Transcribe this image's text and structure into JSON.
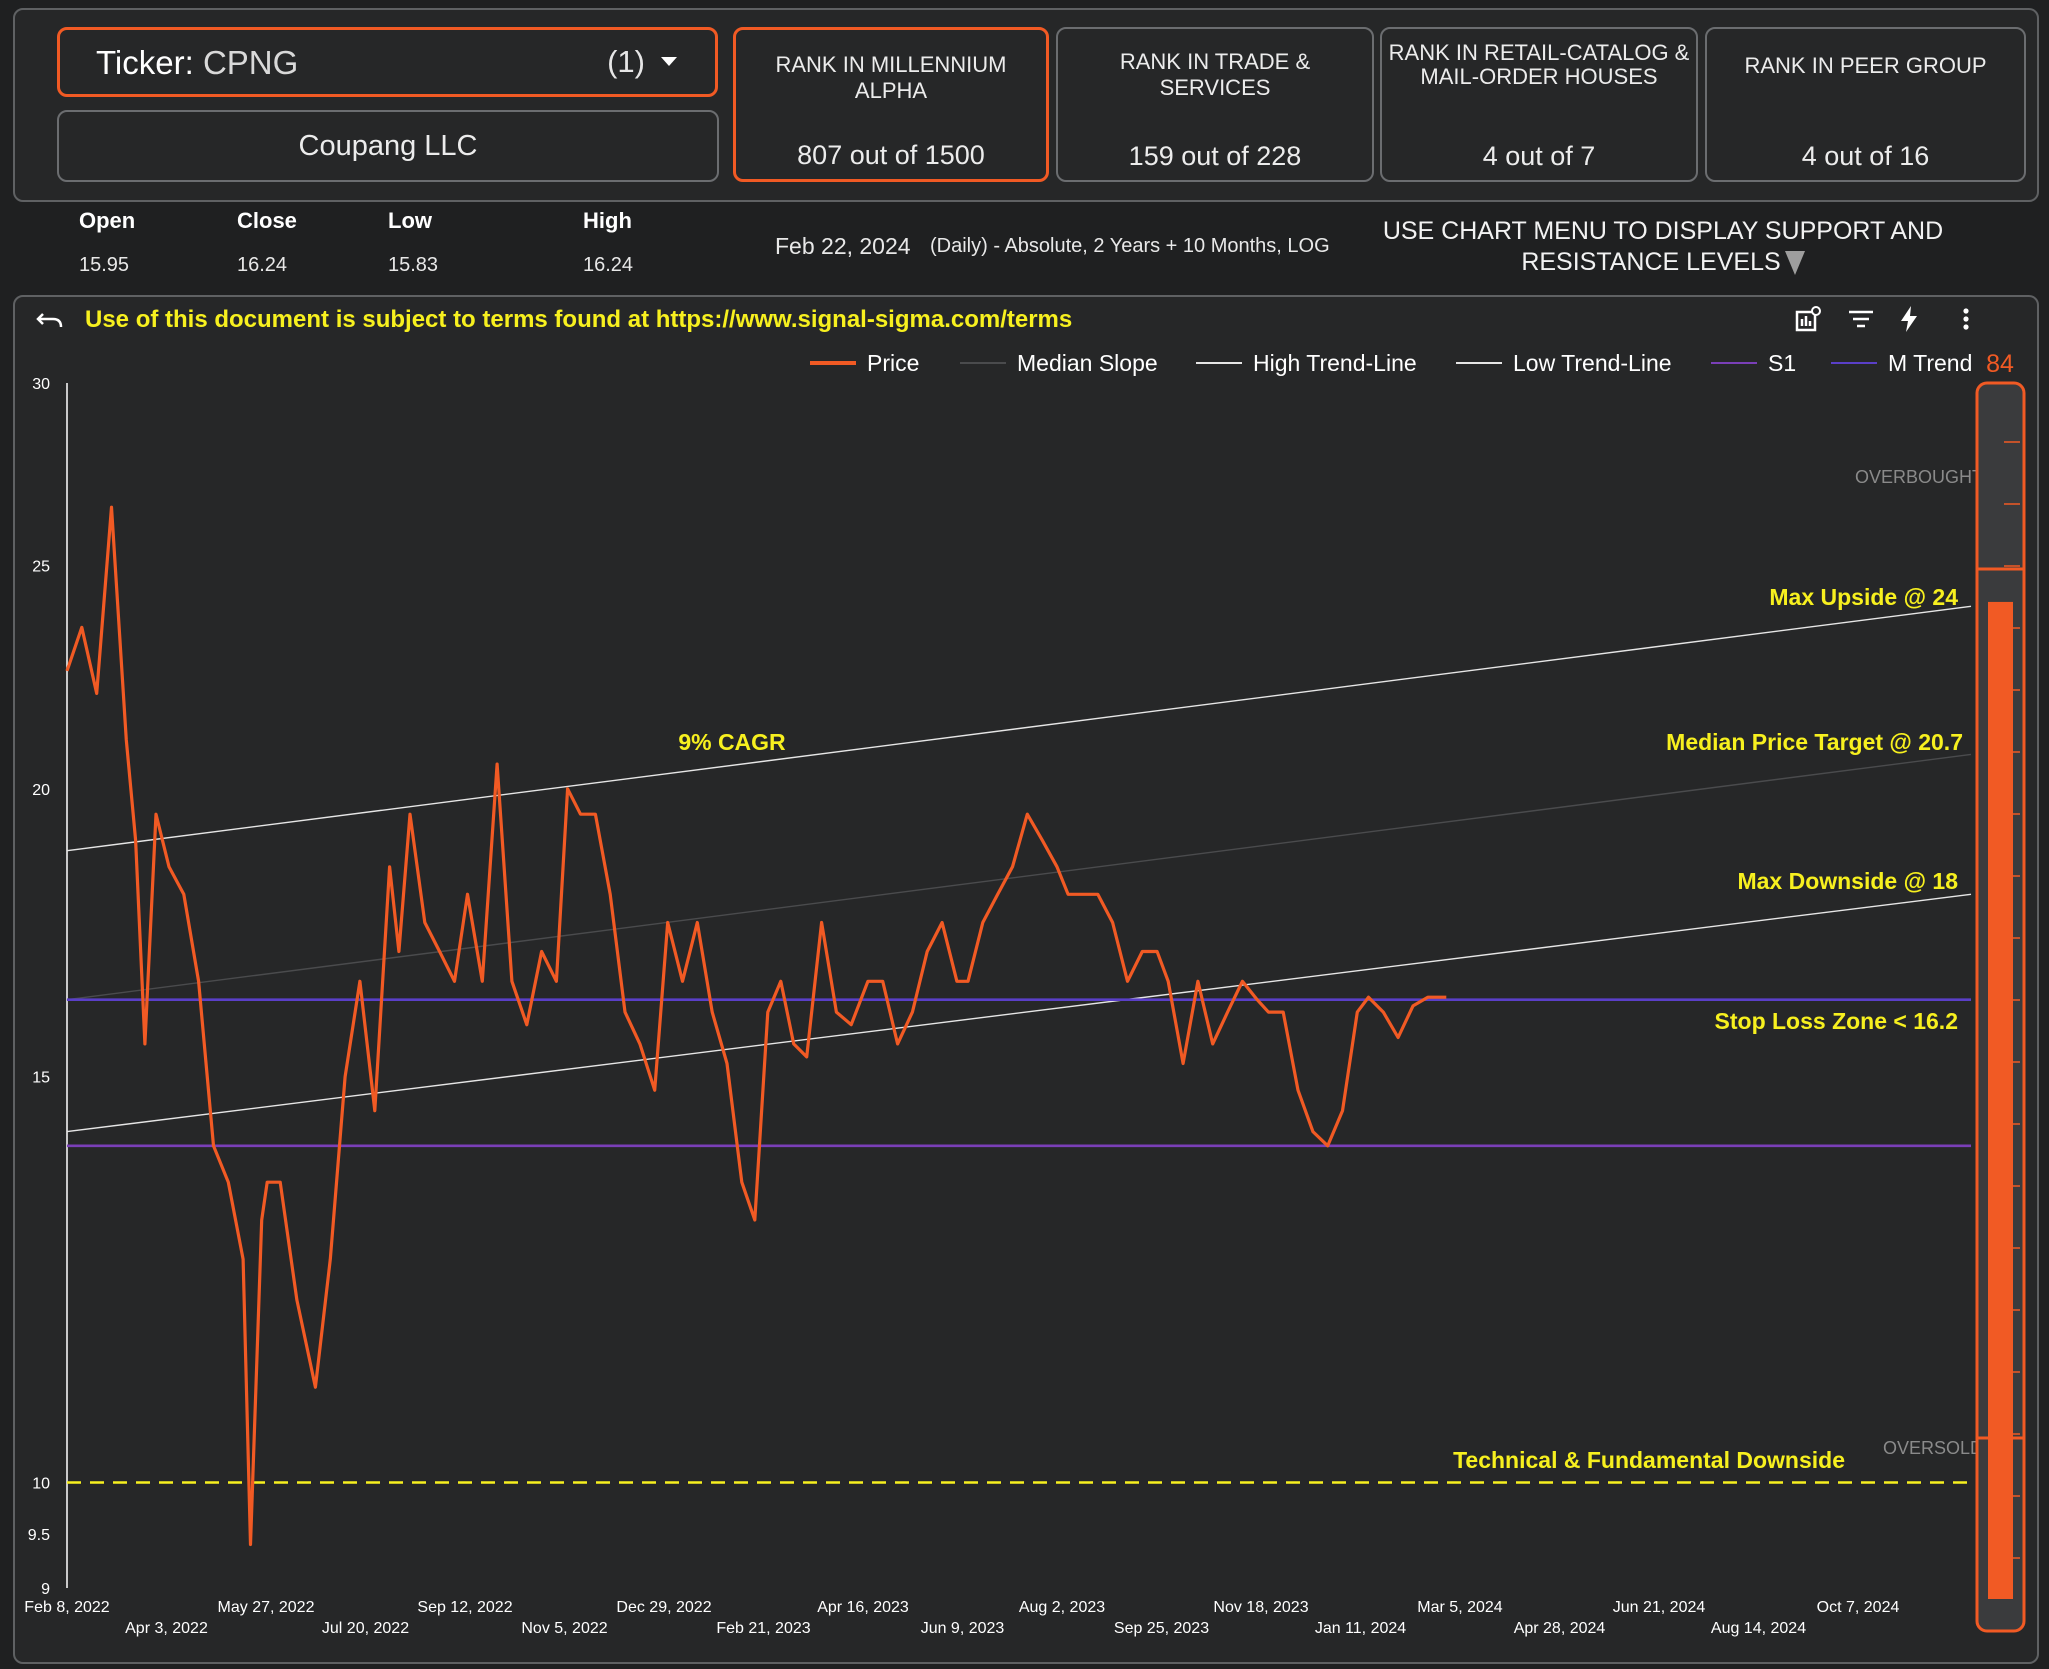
{
  "header": {
    "ticker_label": "Ticker",
    "ticker_value": "CPNG",
    "ticker_count": "(1)",
    "company": "Coupang LLC"
  },
  "ranks": [
    {
      "title": "RANK IN MILLENNIUM ALPHA",
      "value": "807 out of 1500"
    },
    {
      "title": "RANK IN TRADE & SERVICES",
      "value": "159 out of 228"
    },
    {
      "title": "RANK IN RETAIL-CATALOG & MAIL-ORDER HOUSES",
      "value": "4 out of 7"
    },
    {
      "title": "RANK IN PEER GROUP",
      "value": "4 out of 16"
    }
  ],
  "stats": {
    "open_label": "Open",
    "open": "15.95",
    "close_label": "Close",
    "close": "16.24",
    "low_label": "Low",
    "low": "15.83",
    "high_label": "High",
    "high": "16.24"
  },
  "date": "Feb 22, 2024",
  "mode": "(Daily) - Absolute, 2 Years + 10 Months, LOG",
  "hint": "USE CHART MENU TO DISPLAY SUPPORT AND RESISTANCE LEVELS",
  "notice": "Use of this document is subject to terms found at https://www.signal-sigma.com/terms",
  "chart_data": {
    "type": "line",
    "y_scale": "log",
    "ylim": [
      9,
      30
    ],
    "y_ticks": [
      9,
      9.5,
      10,
      15,
      20,
      25,
      30
    ],
    "x_range": [
      "2022-02-08",
      "2024-12-01"
    ],
    "x_ticks_top": [
      "Feb 8, 2022",
      "May 27, 2022",
      "Sep 12, 2022",
      "Dec 29, 2022",
      "Apr 16, 2023",
      "Aug 2, 2023",
      "Nov 18, 2023",
      "Mar 5, 2024",
      "Jun 21, 2024",
      "Oct 7, 2024"
    ],
    "x_ticks_bottom": [
      "Apr 3, 2022",
      "Jul 20, 2022",
      "Nov 5, 2022",
      "Feb 21, 2023",
      "Jun 9, 2023",
      "Sep 25, 2023",
      "Jan 11, 2024",
      "Apr 28, 2024",
      "Aug 14, 2024"
    ],
    "legend": [
      "Price",
      "Median Slope",
      "High Trend-Line",
      "Low Trend-Line",
      "S1",
      "M Trend"
    ],
    "legend_placement": "top-right",
    "series": [
      {
        "name": "Price",
        "color": "#f15a24",
        "x": [
          "2022-02-08",
          "2022-02-16",
          "2022-02-24",
          "2022-03-04",
          "2022-03-12",
          "2022-03-17",
          "2022-03-22",
          "2022-03-28",
          "2022-04-04",
          "2022-04-12",
          "2022-04-20",
          "2022-04-28",
          "2022-05-06",
          "2022-05-14",
          "2022-05-18",
          "2022-05-24",
          "2022-05-27",
          "2022-06-03",
          "2022-06-12",
          "2022-06-22",
          "2022-06-30",
          "2022-07-08",
          "2022-07-16",
          "2022-07-24",
          "2022-08-01",
          "2022-08-06",
          "2022-08-12",
          "2022-08-20",
          "2022-08-28",
          "2022-09-05",
          "2022-09-12",
          "2022-09-20",
          "2022-09-28",
          "2022-10-06",
          "2022-10-14",
          "2022-10-22",
          "2022-10-30",
          "2022-11-05",
          "2022-11-12",
          "2022-11-20",
          "2022-11-28",
          "2022-12-06",
          "2022-12-14",
          "2022-12-22",
          "2022-12-29",
          "2023-01-06",
          "2023-01-14",
          "2023-01-22",
          "2023-01-30",
          "2023-02-07",
          "2023-02-14",
          "2023-02-21",
          "2023-02-28",
          "2023-03-07",
          "2023-03-14",
          "2023-03-22",
          "2023-03-30",
          "2023-04-07",
          "2023-04-16",
          "2023-04-24",
          "2023-05-02",
          "2023-05-10",
          "2023-05-18",
          "2023-05-26",
          "2023-06-03",
          "2023-06-09",
          "2023-06-17",
          "2023-06-25",
          "2023-07-03",
          "2023-07-11",
          "2023-07-19",
          "2023-07-27",
          "2023-08-02",
          "2023-08-10",
          "2023-08-18",
          "2023-08-26",
          "2023-09-03",
          "2023-09-11",
          "2023-09-19",
          "2023-09-25",
          "2023-10-03",
          "2023-10-11",
          "2023-10-19",
          "2023-10-27",
          "2023-11-04",
          "2023-11-12",
          "2023-11-18",
          "2023-11-26",
          "2023-12-04",
          "2023-12-12",
          "2023-12-20",
          "2023-12-28",
          "2024-01-05",
          "2024-01-11",
          "2024-01-19",
          "2024-01-27",
          "2024-02-04",
          "2024-02-12",
          "2024-02-18",
          "2024-02-22"
        ],
        "values": [
          22.5,
          23.5,
          22.0,
          26.5,
          21.0,
          19.0,
          15.5,
          19.5,
          18.5,
          18.0,
          16.5,
          14.0,
          13.5,
          12.5,
          9.4,
          13.0,
          13.5,
          13.5,
          12.0,
          11.0,
          12.5,
          15.0,
          16.5,
          14.5,
          18.5,
          17.0,
          19.5,
          17.5,
          17.0,
          16.5,
          18.0,
          16.5,
          20.5,
          16.5,
          15.8,
          17.0,
          16.5,
          20.0,
          19.5,
          19.5,
          18.0,
          16.0,
          15.5,
          14.8,
          17.5,
          16.5,
          17.5,
          16.0,
          15.2,
          13.5,
          13.0,
          16.0,
          16.5,
          15.5,
          15.3,
          17.5,
          16.0,
          15.8,
          16.5,
          16.5,
          15.5,
          16.0,
          17.0,
          17.5,
          16.5,
          16.5,
          17.5,
          18.0,
          18.5,
          19.5,
          19.0,
          18.5,
          18.0,
          18.0,
          18.0,
          17.5,
          16.5,
          17.0,
          17.0,
          16.5,
          15.2,
          16.5,
          15.5,
          16.0,
          16.5,
          16.2,
          16.0,
          16.0,
          14.8,
          14.2,
          14.0,
          14.5,
          16.0,
          16.24,
          16.0,
          15.6,
          16.1,
          16.24,
          16.24,
          16.24
        ]
      },
      {
        "name": "Median Slope",
        "color": "#4a4b4d",
        "x": [
          "2022-02-08",
          "2024-12-01"
        ],
        "values": [
          16.2,
          20.7
        ]
      },
      {
        "name": "High Trend-Line",
        "color": "#e6e6e6",
        "x": [
          "2022-02-08",
          "2024-12-01"
        ],
        "values": [
          18.8,
          24.0
        ]
      },
      {
        "name": "Low Trend-Line",
        "color": "#e6e6e6",
        "x": [
          "2022-02-08",
          "2024-12-01"
        ],
        "values": [
          14.2,
          18.0
        ]
      },
      {
        "name": "S1",
        "color": "#7a3fb8",
        "x": [
          "2022-02-08",
          "2024-12-01"
        ],
        "values": [
          14.0,
          14.0
        ]
      },
      {
        "name": "M Trend",
        "color": "#5a3fc8",
        "x": [
          "2022-02-08",
          "2024-12-01"
        ],
        "values": [
          16.2,
          16.2
        ]
      }
    ],
    "downside_line": {
      "value": 10,
      "color": "#f7f01f",
      "style": "dashed"
    },
    "annotations": [
      {
        "text": "9% CAGR"
      },
      {
        "text": "Max Upside @ 24"
      },
      {
        "text": "Median Price Target @ 20.7"
      },
      {
        "text": "Max Downside @ 18"
      },
      {
        "text": "Stop Loss Zone < 16.2"
      },
      {
        "text": "Technical & Fundamental Downside"
      }
    ],
    "gauge": {
      "value": 84,
      "label_top": "OVERBOUGHT",
      "label_bottom": "OVERSOLD",
      "level": 0.84,
      "color": "#f15a24"
    }
  }
}
